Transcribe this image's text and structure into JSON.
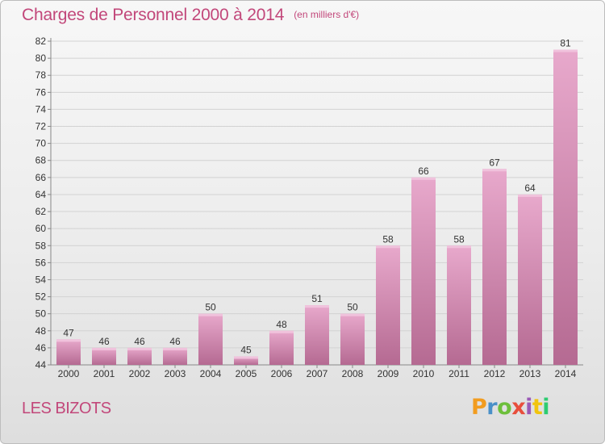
{
  "chart_data": {
    "type": "bar",
    "title": "Charges de Personnel 2000 à 2014",
    "subtitle": "(en milliers d'€)",
    "categories": [
      "2000",
      "2001",
      "2002",
      "2003",
      "2004",
      "2005",
      "2006",
      "2007",
      "2008",
      "2009",
      "2010",
      "2011",
      "2012",
      "2013",
      "2014"
    ],
    "values": [
      47,
      46,
      46,
      46,
      50,
      45,
      48,
      51,
      50,
      58,
      66,
      58,
      67,
      64,
      81
    ],
    "ylim": [
      44,
      82
    ],
    "yticks": [
      44,
      46,
      48,
      50,
      52,
      54,
      56,
      58,
      60,
      62,
      64,
      66,
      68,
      70,
      72,
      74,
      76,
      78,
      80,
      82
    ],
    "grid": true,
    "bar_color": "#d98fb5",
    "legend": "none"
  },
  "footer": {
    "city": "LES BIZOTS",
    "logo": "Proxiti"
  },
  "colors": {
    "title": "#c2477a",
    "logo_letters": [
      "#f29c1f",
      "#4a90c8",
      "#6dbf3b",
      "#e84e3c",
      "#9b59b6",
      "#f1c40f",
      "#2ecc71"
    ]
  }
}
